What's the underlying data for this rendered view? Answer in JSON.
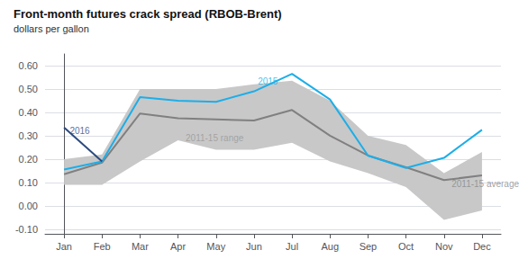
{
  "chart_data": {
    "type": "line",
    "title": "Front-month futures crack spread (RBOB-Brent)",
    "subtitle": "dollars per gallon",
    "categories": [
      "Jan",
      "Feb",
      "Mar",
      "Apr",
      "May",
      "Jun",
      "Jul",
      "Aug",
      "Sep",
      "Oct",
      "Nov",
      "Dec"
    ],
    "ylim": [
      -0.12,
      0.65
    ],
    "yticks": [
      {
        "value": -0.1,
        "label": "-0.10"
      },
      {
        "value": 0,
        "label": "0.00"
      },
      {
        "value": 0.1,
        "label": "0.10"
      },
      {
        "value": 0.2,
        "label": "0.20"
      },
      {
        "value": 0.3,
        "label": "0.30"
      },
      {
        "value": 0.4,
        "label": "0.40"
      },
      {
        "value": 0.5,
        "label": "0.50"
      },
      {
        "value": 0.6,
        "label": "0.60"
      }
    ],
    "grid": true,
    "series": [
      {
        "name": "2011-15 range",
        "type": "band",
        "low": [
          0.09,
          0.09,
          0.19,
          0.28,
          0.24,
          0.24,
          0.27,
          0.19,
          0.14,
          0.08,
          -0.06,
          -0.02
        ],
        "high": [
          0.2,
          0.22,
          0.5,
          0.5,
          0.5,
          0.52,
          0.535,
          0.45,
          0.3,
          0.26,
          0.14,
          0.23
        ],
        "color": "#c8c8c8"
      },
      {
        "name": "2011-15 average",
        "type": "line",
        "values": [
          0.135,
          0.185,
          0.395,
          0.375,
          0.37,
          0.365,
          0.41,
          0.3,
          0.215,
          0.165,
          0.11,
          0.13
        ],
        "color": "#808080"
      },
      {
        "name": "2015",
        "type": "line",
        "values": [
          0.155,
          0.19,
          0.465,
          0.45,
          0.445,
          0.49,
          0.565,
          0.455,
          0.215,
          0.162,
          0.205,
          0.325
        ],
        "color": "#1daee8"
      },
      {
        "name": "2016",
        "type": "line",
        "values": [
          0.335,
          0.19,
          null,
          null,
          null,
          null,
          null,
          null,
          null,
          null,
          null,
          null
        ],
        "color": "#2b4a7e"
      }
    ],
    "annotations": [
      {
        "text": "2015",
        "x": 5.1,
        "y": 0.515,
        "color": "#1daee8"
      },
      {
        "text": "2016",
        "x": 0.15,
        "y": 0.3,
        "color": "#2b4a7e"
      },
      {
        "text": "2011-15 range",
        "x": 3.2,
        "y": 0.27,
        "color": "#999999"
      },
      {
        "text": "2011-15 average",
        "x": 10.2,
        "y": 0.075,
        "color": "#888888"
      }
    ]
  }
}
